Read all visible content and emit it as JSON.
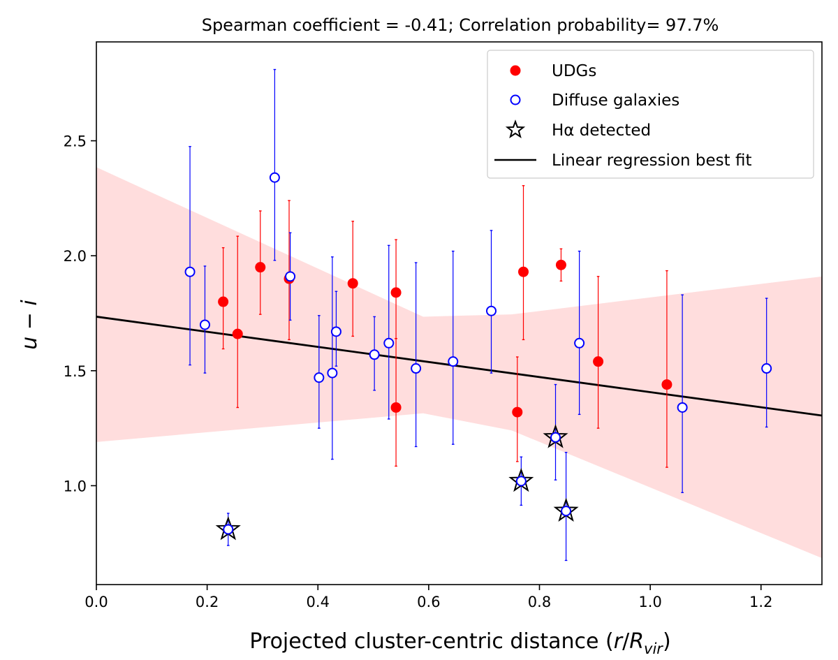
{
  "chart_data": {
    "type": "scatter",
    "title": "Spearman coefficient = -0.41;  Correlation probability= 97.7%",
    "xlabel": {
      "main": "Projected cluster-centric distance (",
      "r": "r",
      "slash": "/",
      "R": "R",
      "sub": "vir",
      "close": ")"
    },
    "ylabel": {
      "u": "u",
      "minus": " − ",
      "i": "i"
    },
    "xlim": [
      0.0,
      1.31
    ],
    "ylim": [
      0.57,
      2.93
    ],
    "xticks": [
      "0.0",
      "0.2",
      "0.4",
      "0.6",
      "0.8",
      "1.0",
      "1.2"
    ],
    "yticks": [
      "1.0",
      "1.5",
      "2.0",
      "2.5"
    ],
    "legend": {
      "position": "top-right",
      "entries": [
        "UDGs",
        "Diffuse galaxies",
        "Hα detected",
        "Linear regression best fit"
      ]
    },
    "series": [
      {
        "name": "UDGs",
        "marker": "filled-circle",
        "color": "#ff0000",
        "points": [
          {
            "x": 0.229,
            "y": 1.8,
            "lo": 1.595,
            "hi": 2.035
          },
          {
            "x": 0.255,
            "y": 1.66,
            "lo": 1.34,
            "hi": 2.085
          },
          {
            "x": 0.296,
            "y": 1.95,
            "lo": 1.745,
            "hi": 2.195
          },
          {
            "x": 0.348,
            "y": 1.9,
            "lo": 1.635,
            "hi": 2.24
          },
          {
            "x": 0.463,
            "y": 1.88,
            "lo": 1.65,
            "hi": 2.15
          },
          {
            "x": 0.541,
            "y": 1.84,
            "lo": 1.64,
            "hi": 2.07
          },
          {
            "x": 0.541,
            "y": 1.34,
            "lo": 1.085,
            "hi": 1.64
          },
          {
            "x": 0.76,
            "y": 1.32,
            "lo": 1.105,
            "hi": 1.56
          },
          {
            "x": 0.771,
            "y": 1.93,
            "lo": 1.635,
            "hi": 2.305
          },
          {
            "x": 0.839,
            "y": 1.96,
            "lo": 1.89,
            "hi": 2.03
          },
          {
            "x": 0.906,
            "y": 1.54,
            "lo": 1.25,
            "hi": 1.91
          },
          {
            "x": 1.03,
            "y": 1.44,
            "lo": 1.08,
            "hi": 1.935
          }
        ]
      },
      {
        "name": "Diffuse galaxies",
        "marker": "open-circle",
        "color": "#0000ff",
        "points": [
          {
            "x": 0.169,
            "y": 1.93,
            "lo": 1.525,
            "hi": 2.475
          },
          {
            "x": 0.196,
            "y": 1.7,
            "lo": 1.49,
            "hi": 1.955
          },
          {
            "x": 0.238,
            "y": 0.81,
            "lo": 0.74,
            "hi": 0.88
          },
          {
            "x": 0.322,
            "y": 2.34,
            "lo": 1.98,
            "hi": 2.81
          },
          {
            "x": 0.35,
            "y": 1.91,
            "lo": 1.72,
            "hi": 2.1
          },
          {
            "x": 0.402,
            "y": 1.47,
            "lo": 1.25,
            "hi": 1.74
          },
          {
            "x": 0.426,
            "y": 1.49,
            "lo": 1.115,
            "hi": 1.995
          },
          {
            "x": 0.433,
            "y": 1.67,
            "lo": 1.52,
            "hi": 1.845
          },
          {
            "x": 0.502,
            "y": 1.57,
            "lo": 1.415,
            "hi": 1.735
          },
          {
            "x": 0.528,
            "y": 1.62,
            "lo": 1.29,
            "hi": 2.045
          },
          {
            "x": 0.577,
            "y": 1.51,
            "lo": 1.17,
            "hi": 1.97
          },
          {
            "x": 0.644,
            "y": 1.54,
            "lo": 1.18,
            "hi": 2.02
          },
          {
            "x": 0.713,
            "y": 1.76,
            "lo": 1.49,
            "hi": 2.11
          },
          {
            "x": 0.767,
            "y": 1.02,
            "lo": 0.915,
            "hi": 1.125
          },
          {
            "x": 0.829,
            "y": 1.21,
            "lo": 1.025,
            "hi": 1.44
          },
          {
            "x": 0.848,
            "y": 0.89,
            "lo": 0.675,
            "hi": 1.145
          },
          {
            "x": 0.872,
            "y": 1.62,
            "lo": 1.31,
            "hi": 2.02
          },
          {
            "x": 1.058,
            "y": 1.34,
            "lo": 0.97,
            "hi": 1.83
          },
          {
            "x": 1.21,
            "y": 1.51,
            "lo": 1.255,
            "hi": 1.815
          }
        ]
      },
      {
        "name": "Hα detected",
        "marker": "open-star",
        "color": "#000000",
        "points": [
          {
            "x": 0.238,
            "y": 0.81
          },
          {
            "x": 0.767,
            "y": 1.02
          },
          {
            "x": 0.829,
            "y": 1.21
          },
          {
            "x": 0.848,
            "y": 0.89
          }
        ]
      }
    ],
    "fit_line": {
      "name": "Linear regression best fit",
      "color": "#000000",
      "points": [
        {
          "x": 0.0,
          "y": 1.735
        },
        {
          "x": 1.31,
          "y": 1.305
        }
      ]
    },
    "confidence_band": {
      "color": "#ffdddd",
      "upper": [
        {
          "x": 0.0,
          "y": 2.385
        },
        {
          "x": 0.59,
          "y": 1.735
        },
        {
          "x": 0.75,
          "y": 1.745
        },
        {
          "x": 1.31,
          "y": 1.91
        }
      ],
      "lower": [
        {
          "x": 0.0,
          "y": 1.19
        },
        {
          "x": 0.59,
          "y": 1.315
        },
        {
          "x": 0.75,
          "y": 1.24
        },
        {
          "x": 1.31,
          "y": 0.685
        }
      ]
    }
  }
}
